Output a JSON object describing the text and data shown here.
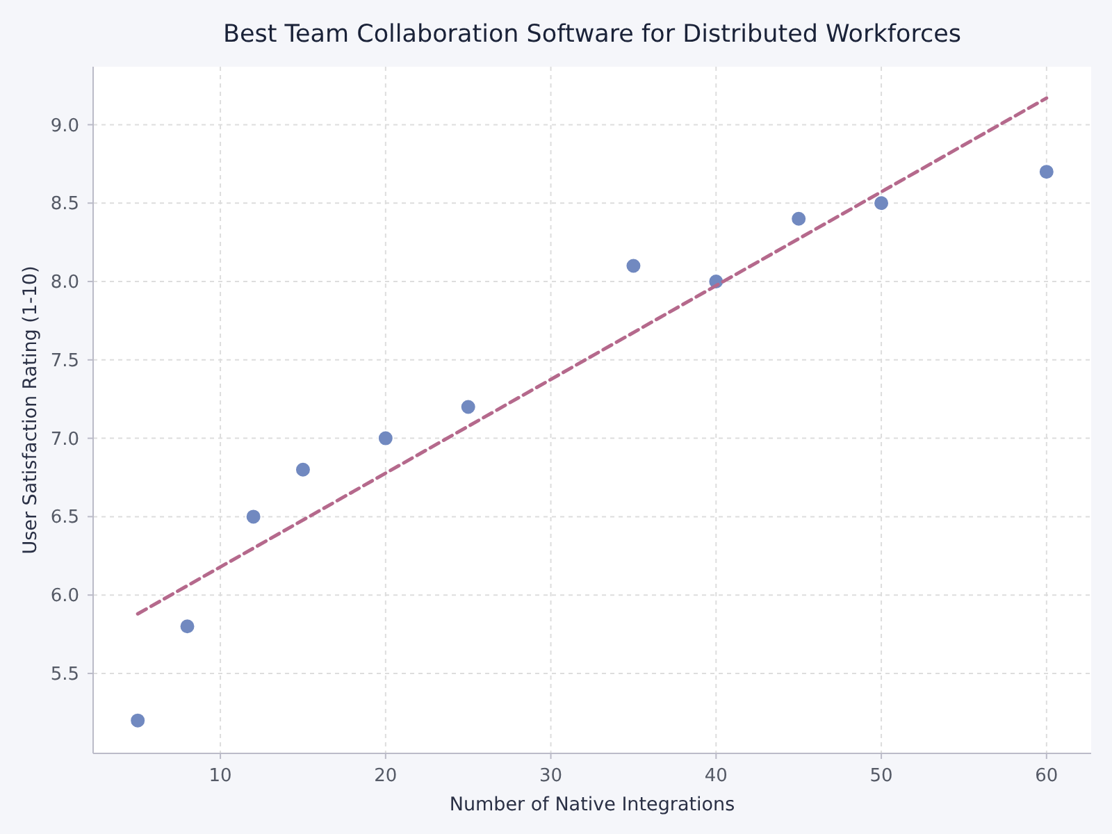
{
  "chart_data": {
    "type": "scatter",
    "title": "Best Team Collaboration Software for Distributed Workforces",
    "xlabel": "Number of Native Integrations",
    "ylabel": "User Satisfaction Rating (1-10)",
    "series": [
      {
        "color": "#7189c0",
        "x": [
          5,
          8,
          12,
          15,
          20,
          25,
          35,
          40,
          45,
          50,
          60
        ],
        "values": [
          5.2,
          5.8,
          6.5,
          6.8,
          7.0,
          7.2,
          8.1,
          8.0,
          8.4,
          8.5,
          8.7
        ]
      },
      {
        "type": "line",
        "color": "#b5698c",
        "line_style": "dashed",
        "marker": "none",
        "x": [
          5,
          60
        ],
        "values": [
          5.88,
          9.17
        ]
      }
    ],
    "xlim": [
      2.3,
      62.7
    ],
    "xticks": [
      10,
      20,
      30,
      40,
      50,
      60
    ],
    "ylim": [
      4.99,
      9.37
    ],
    "yticks": [
      5.5,
      {
        "value": 6,
        "label": "6.0"
      },
      6.5,
      {
        "value": 7,
        "label": "7.0"
      },
      7.5,
      {
        "value": 8,
        "label": "8.0"
      },
      8.5,
      {
        "value": 9,
        "label": "9.0"
      }
    ],
    "grid": true,
    "marker": "circle"
  }
}
